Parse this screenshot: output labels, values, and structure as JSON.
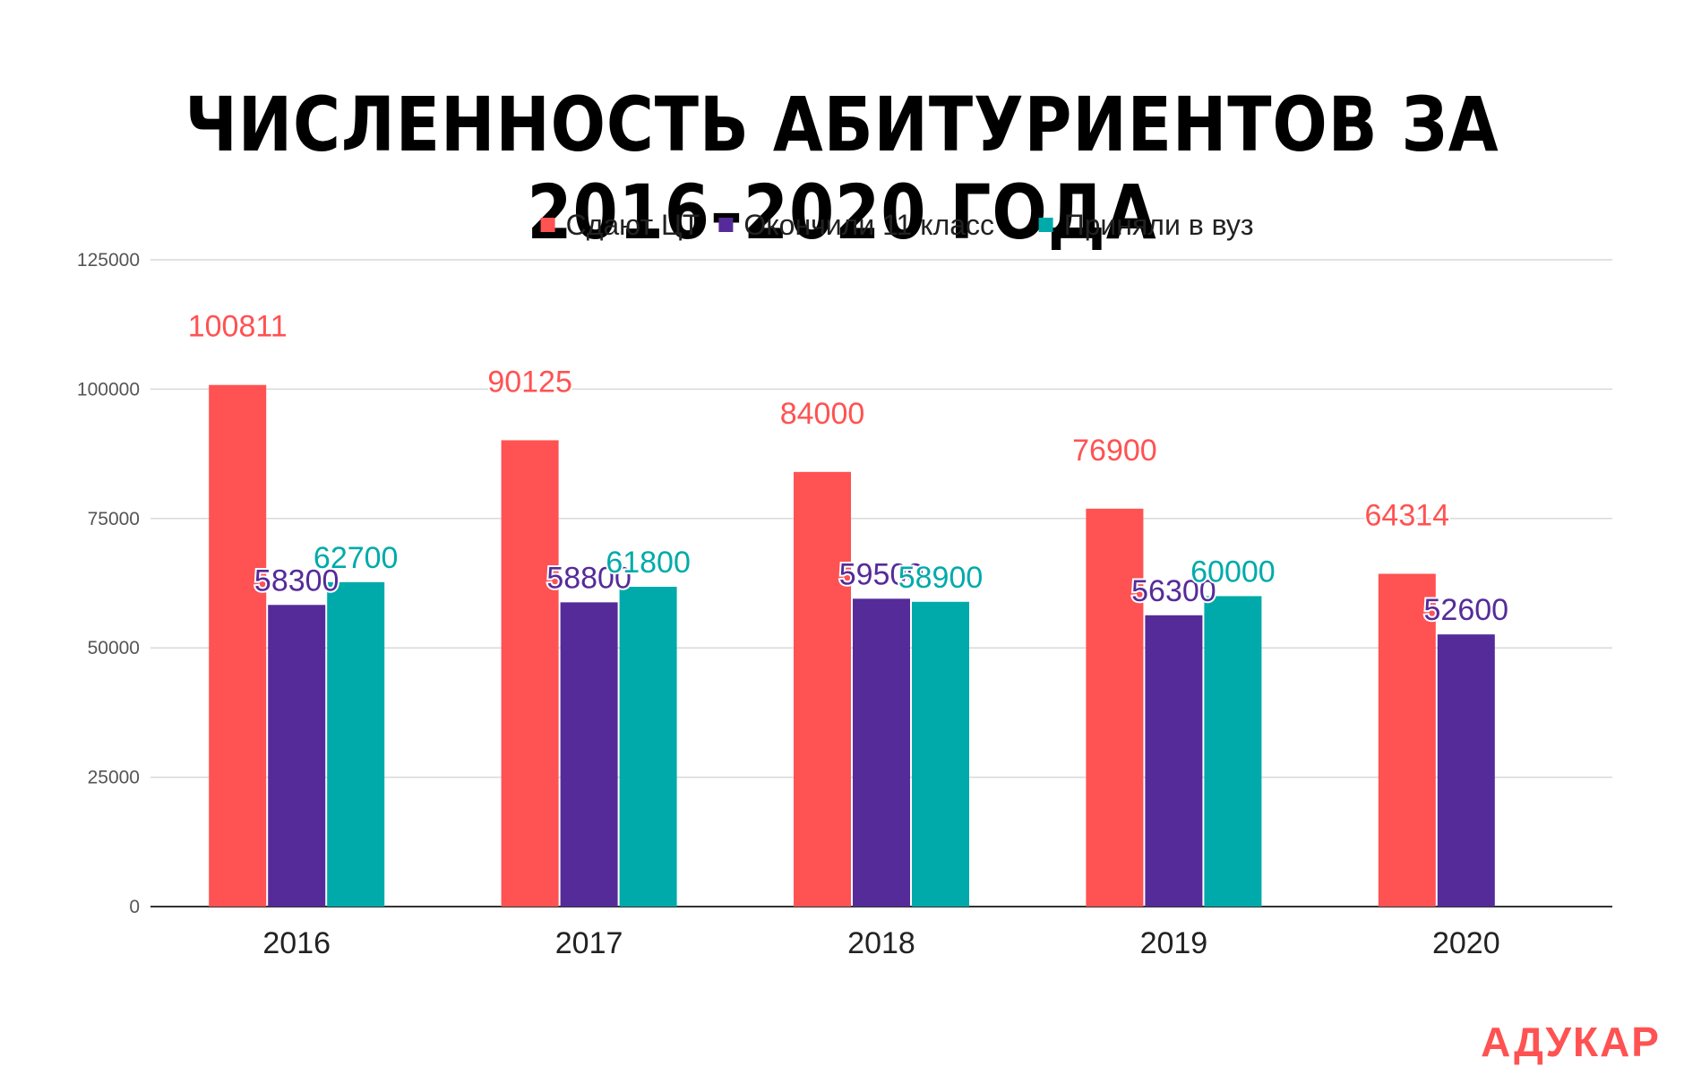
{
  "brand": {
    "name": "АДУКАР",
    "color": "#ff5252"
  },
  "chart_data": {
    "type": "bar",
    "title": "ЧИСЛЕННОСТЬ АБИТУРИЕНТОВ ЗА 2016–2020 ГОДА",
    "categories": [
      "2016",
      "2017",
      "2018",
      "2019",
      "2020"
    ],
    "series": [
      {
        "name": "Сдают ЦТ",
        "color": "#ff5252",
        "values": [
          100811,
          90125,
          84000,
          76900,
          64314
        ]
      },
      {
        "name": "Окончили 11 класс",
        "color": "#552b9a",
        "values": [
          58300,
          58800,
          59500,
          56300,
          52600
        ]
      },
      {
        "name": "Приняли в вуз",
        "color": "#00aaaa",
        "values": [
          62700,
          61800,
          58900,
          60000,
          null
        ]
      }
    ],
    "ylim": [
      0,
      125000
    ],
    "yticks": [
      0,
      25000,
      50000,
      75000,
      100000,
      125000
    ],
    "xlabel": "",
    "ylabel": "",
    "grid": true,
    "legend_position": "top",
    "data_labels": true
  }
}
